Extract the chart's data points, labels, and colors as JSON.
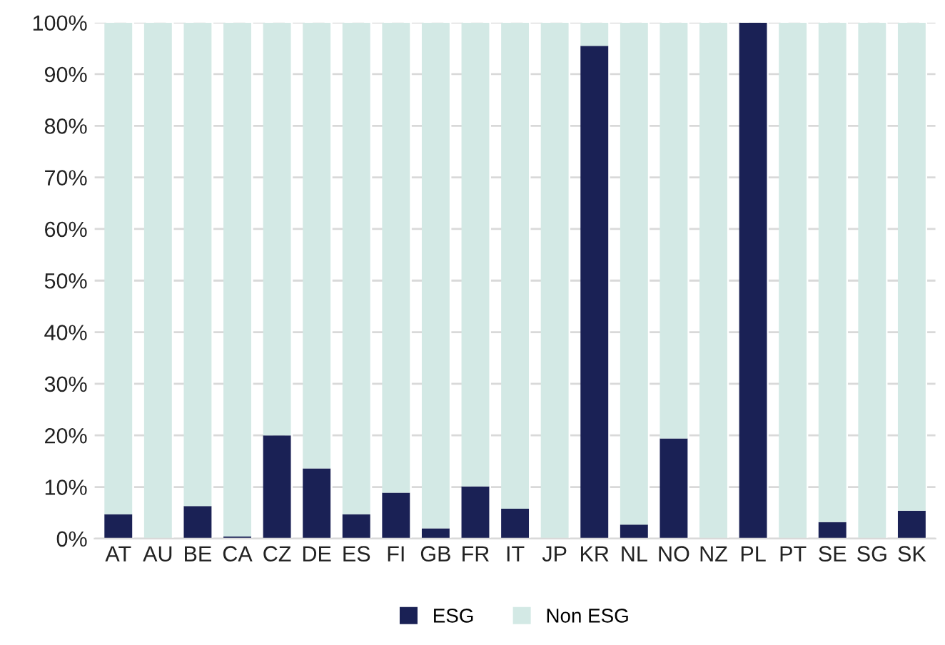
{
  "chart_data": {
    "type": "bar",
    "stacked": true,
    "categories": [
      "AT",
      "AU",
      "BE",
      "CA",
      "CZ",
      "DE",
      "ES",
      "FI",
      "GB",
      "FR",
      "IT",
      "JP",
      "KR",
      "NL",
      "NO",
      "NZ",
      "PL",
      "PT",
      "SE",
      "SG",
      "SK"
    ],
    "series": [
      {
        "name": "ESG",
        "color": "#1a2155",
        "values": [
          4.7,
          0,
          6.3,
          0.4,
          20,
          13.6,
          4.7,
          8.9,
          2,
          10.1,
          5.8,
          0,
          95.5,
          2.7,
          19.4,
          0,
          100,
          0,
          3.2,
          0,
          5.4
        ]
      },
      {
        "name": "Non ESG",
        "color": "#d3e9e5",
        "values": [
          95.3,
          100,
          93.7,
          99.6,
          80,
          86.4,
          95.3,
          91.1,
          98,
          89.9,
          94.2,
          100,
          4.5,
          97.3,
          80.6,
          100,
          0,
          100,
          96.8,
          100,
          94.6
        ]
      }
    ],
    "ylim": [
      0,
      100
    ],
    "yticks": [
      {
        "value": 0,
        "label": "0%"
      },
      {
        "value": 10,
        "label": "10%"
      },
      {
        "value": 20,
        "label": "20%"
      },
      {
        "value": 30,
        "label": "30%"
      },
      {
        "value": 40,
        "label": "40%"
      },
      {
        "value": 50,
        "label": "50%"
      },
      {
        "value": 60,
        "label": "60%"
      },
      {
        "value": 70,
        "label": "70%"
      },
      {
        "value": 80,
        "label": "80%"
      },
      {
        "value": 90,
        "label": "90%"
      },
      {
        "value": 100,
        "label": "100%"
      }
    ],
    "grid": "y",
    "legend": "bottom"
  }
}
